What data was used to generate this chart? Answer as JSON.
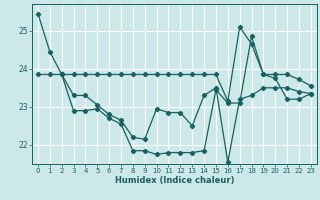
{
  "xlabel": "Humidex (Indice chaleur)",
  "bg_color": "#cce8e8",
  "line_color": "#1a6060",
  "grid_color": "#ffffff",
  "xlim": [
    -0.5,
    23.5
  ],
  "ylim": [
    21.5,
    25.7
  ],
  "yticks": [
    22,
    23,
    24,
    25
  ],
  "xticks": [
    0,
    1,
    2,
    3,
    4,
    5,
    6,
    7,
    8,
    9,
    10,
    11,
    12,
    13,
    14,
    15,
    16,
    17,
    18,
    19,
    20,
    21,
    22,
    23
  ],
  "curve1_x": [
    0,
    1,
    2,
    3,
    4,
    5,
    6,
    7,
    8,
    9,
    10,
    11,
    12,
    13,
    14,
    15,
    16,
    17,
    18,
    19,
    20,
    21,
    22,
    23
  ],
  "curve1_y": [
    25.45,
    24.45,
    23.85,
    22.9,
    22.9,
    22.95,
    22.7,
    22.55,
    21.85,
    21.85,
    21.75,
    21.8,
    21.8,
    21.8,
    21.85,
    23.45,
    23.1,
    23.1,
    24.85,
    23.85,
    23.75,
    23.2,
    23.2,
    23.35
  ],
  "curve2_x": [
    2,
    3,
    4,
    5,
    6,
    7,
    8,
    9,
    10,
    11,
    12,
    13,
    14,
    15,
    16,
    17,
    18,
    19,
    20,
    21,
    22,
    23
  ],
  "curve2_y": [
    23.85,
    23.3,
    23.3,
    23.05,
    22.8,
    22.65,
    22.2,
    22.15,
    22.95,
    22.85,
    22.85,
    22.5,
    23.3,
    23.5,
    21.55,
    23.2,
    23.3,
    23.5,
    23.5,
    23.5,
    23.4,
    23.35
  ],
  "curve3_x": [
    0,
    1,
    2,
    3,
    4,
    5,
    6,
    7,
    8,
    9,
    10,
    11,
    12,
    13,
    14,
    15,
    16,
    17,
    18,
    19,
    20,
    21,
    22,
    23
  ],
  "curve3_y": [
    23.85,
    23.85,
    23.85,
    23.85,
    23.85,
    23.85,
    23.85,
    23.85,
    23.85,
    23.85,
    23.85,
    23.85,
    23.85,
    23.85,
    23.85,
    23.85,
    23.15,
    25.1,
    24.65,
    23.85,
    23.85,
    23.85,
    23.72,
    23.55
  ]
}
